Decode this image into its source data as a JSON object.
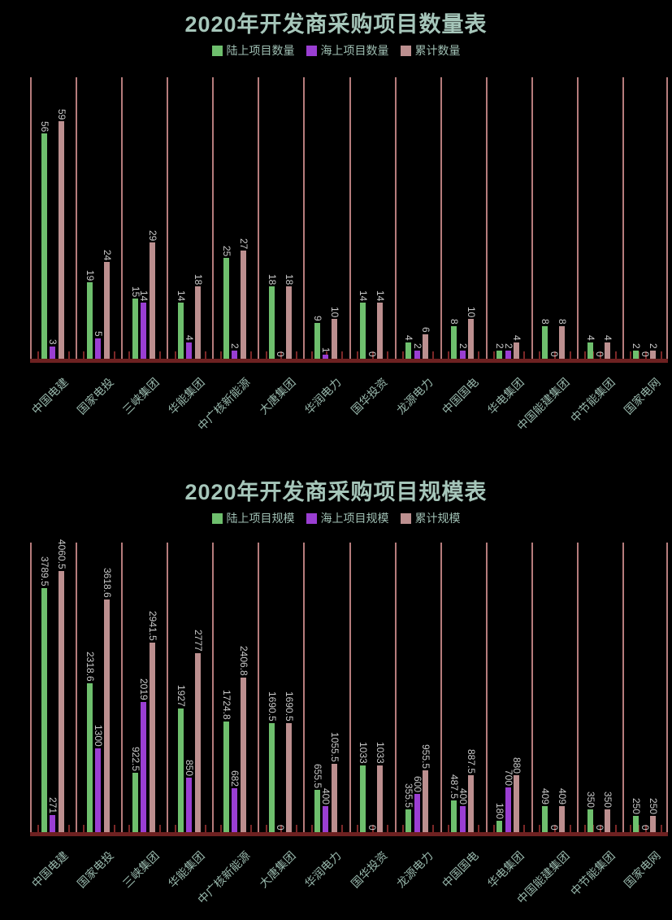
{
  "colors": {
    "background": "#000000",
    "title_text": "#a6c6ba",
    "legend_text": "#9fbfb3",
    "axis_label_text": "#98b8ac",
    "value_label_text": "#c9c9c9",
    "gridline": "#b67c7c",
    "axis_band": "#6e2121",
    "land_series": "#6ebf6d",
    "sea_series": "#9a3ed2",
    "total_series": "#bc8f8f"
  },
  "chart_data": [
    {
      "type": "bar",
      "title": "2020年开发商采购项目数量表",
      "legend_position": "top",
      "grid": "vertical category separators, no horizontal gridlines, no y-axis labels",
      "value_labels": "rotated 90°, above each bar",
      "categories": [
        "中国电建",
        "国家电投",
        "三峡集团",
        "华能集团",
        "中广核新能源",
        "大唐集团",
        "华润电力",
        "国华投资",
        "龙源电力",
        "中国国电",
        "华电集团",
        "中国能建集团",
        "中节能集团",
        "国家电网"
      ],
      "series": [
        {
          "name": "陆上项目数量",
          "color": "#6ebf6d",
          "values": [
            56,
            19,
            15,
            14,
            25,
            18,
            9,
            14,
            4,
            8,
            2,
            8,
            4,
            2
          ]
        },
        {
          "name": "海上项目数量",
          "color": "#9a3ed2",
          "values": [
            3,
            5,
            14,
            4,
            2,
            0,
            1,
            0,
            2,
            2,
            2,
            0,
            0,
            0
          ]
        },
        {
          "name": "累计数量",
          "color": "#bc8f8f",
          "values": [
            59,
            24,
            29,
            18,
            27,
            18,
            10,
            14,
            6,
            10,
            4,
            8,
            4,
            2
          ]
        }
      ],
      "xlabel": "",
      "ylabel": "",
      "ylim": [
        0,
        70
      ]
    },
    {
      "type": "bar",
      "title": "2020年开发商采购项目规模表",
      "legend_position": "top",
      "grid": "vertical category separators, no horizontal gridlines, no y-axis labels",
      "value_labels": "rotated 90°, above each bar",
      "categories": [
        "中国电建",
        "国家电投",
        "三峡集团",
        "华能集团",
        "中广核新能源",
        "大唐集团",
        "华润电力",
        "国华投资",
        "龙源电力",
        "中国国电",
        "华电集团",
        "中国能建集团",
        "中节能集团",
        "国家电网"
      ],
      "series": [
        {
          "name": "陆上项目规模",
          "color": "#6ebf6d",
          "values": [
            3789.5,
            2318.6,
            922.5,
            1927,
            1724.8,
            1690.5,
            655.5,
            1033,
            355.5,
            487.5,
            180,
            409,
            350,
            250
          ]
        },
        {
          "name": "海上项目规模",
          "color": "#9a3ed2",
          "values": [
            271,
            1300,
            2019,
            850,
            682,
            0,
            400,
            0,
            600,
            400,
            700,
            0,
            0,
            0
          ]
        },
        {
          "name": "累计规模",
          "color": "#bc8f8f",
          "values": [
            4060.5,
            3618.6,
            2941.5,
            2777,
            2406.8,
            1690.5,
            1055.5,
            1033,
            955.5,
            887.5,
            880,
            409,
            350,
            250
          ]
        }
      ],
      "xlabel": "",
      "ylabel": "",
      "ylim": [
        0,
        4500
      ]
    }
  ]
}
